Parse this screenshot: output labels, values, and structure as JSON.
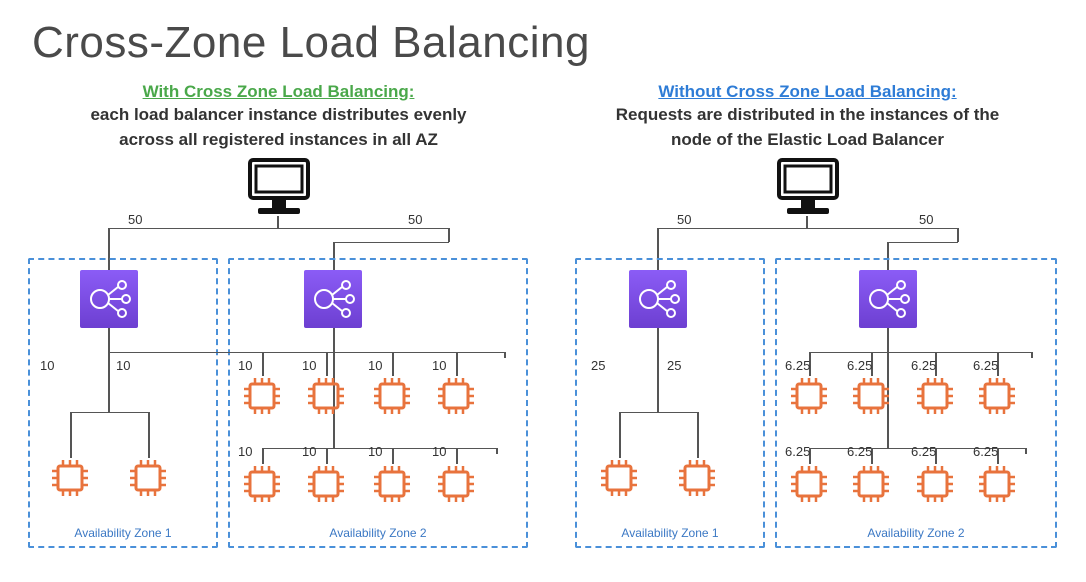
{
  "title": "Cross-Zone Load Balancing",
  "colors": {
    "title": "#595959",
    "with_heading": "#4aa84a",
    "without_heading": "#2e7cd6",
    "sub_text": "#333333",
    "az_border": "#4a90d9",
    "az_label": "#3b78c4",
    "lb_node_top": "#8b5cf6",
    "lb_node_bottom": "#6d3fd1",
    "cpu": "#e8733d",
    "connector": "#555555",
    "computer": "#111111"
  },
  "with": {
    "heading": "With Cross Zone Load Balancing:",
    "sub1": "each load balancer instance distributes evenly",
    "sub2": "across all registered instances in all AZ",
    "split_left": "50",
    "split_right": "50",
    "az1": {
      "label": "Availability Zone 1",
      "cpu_labels": [
        "10",
        "10"
      ]
    },
    "az2": {
      "label": "Availability Zone 2",
      "row1_labels": [
        "10",
        "10",
        "10",
        "10"
      ],
      "row2_labels": [
        "10",
        "10",
        "10",
        "10"
      ]
    }
  },
  "without": {
    "heading": "Without Cross Zone Load Balancing:",
    "sub1": "Requests are distributed in the instances of the",
    "sub2": "node of the Elastic Load Balancer",
    "split_left": "50",
    "split_right": "50",
    "az1": {
      "label": "Availability Zone 1",
      "cpu_labels": [
        "25",
        "25"
      ]
    },
    "az2": {
      "label": "Availability Zone 2",
      "row1_labels": [
        "6.25",
        "6.25",
        "6.25",
        "6.25"
      ],
      "row2_labels": [
        "6.25",
        "6.25",
        "6.25",
        "6.25"
      ]
    }
  }
}
